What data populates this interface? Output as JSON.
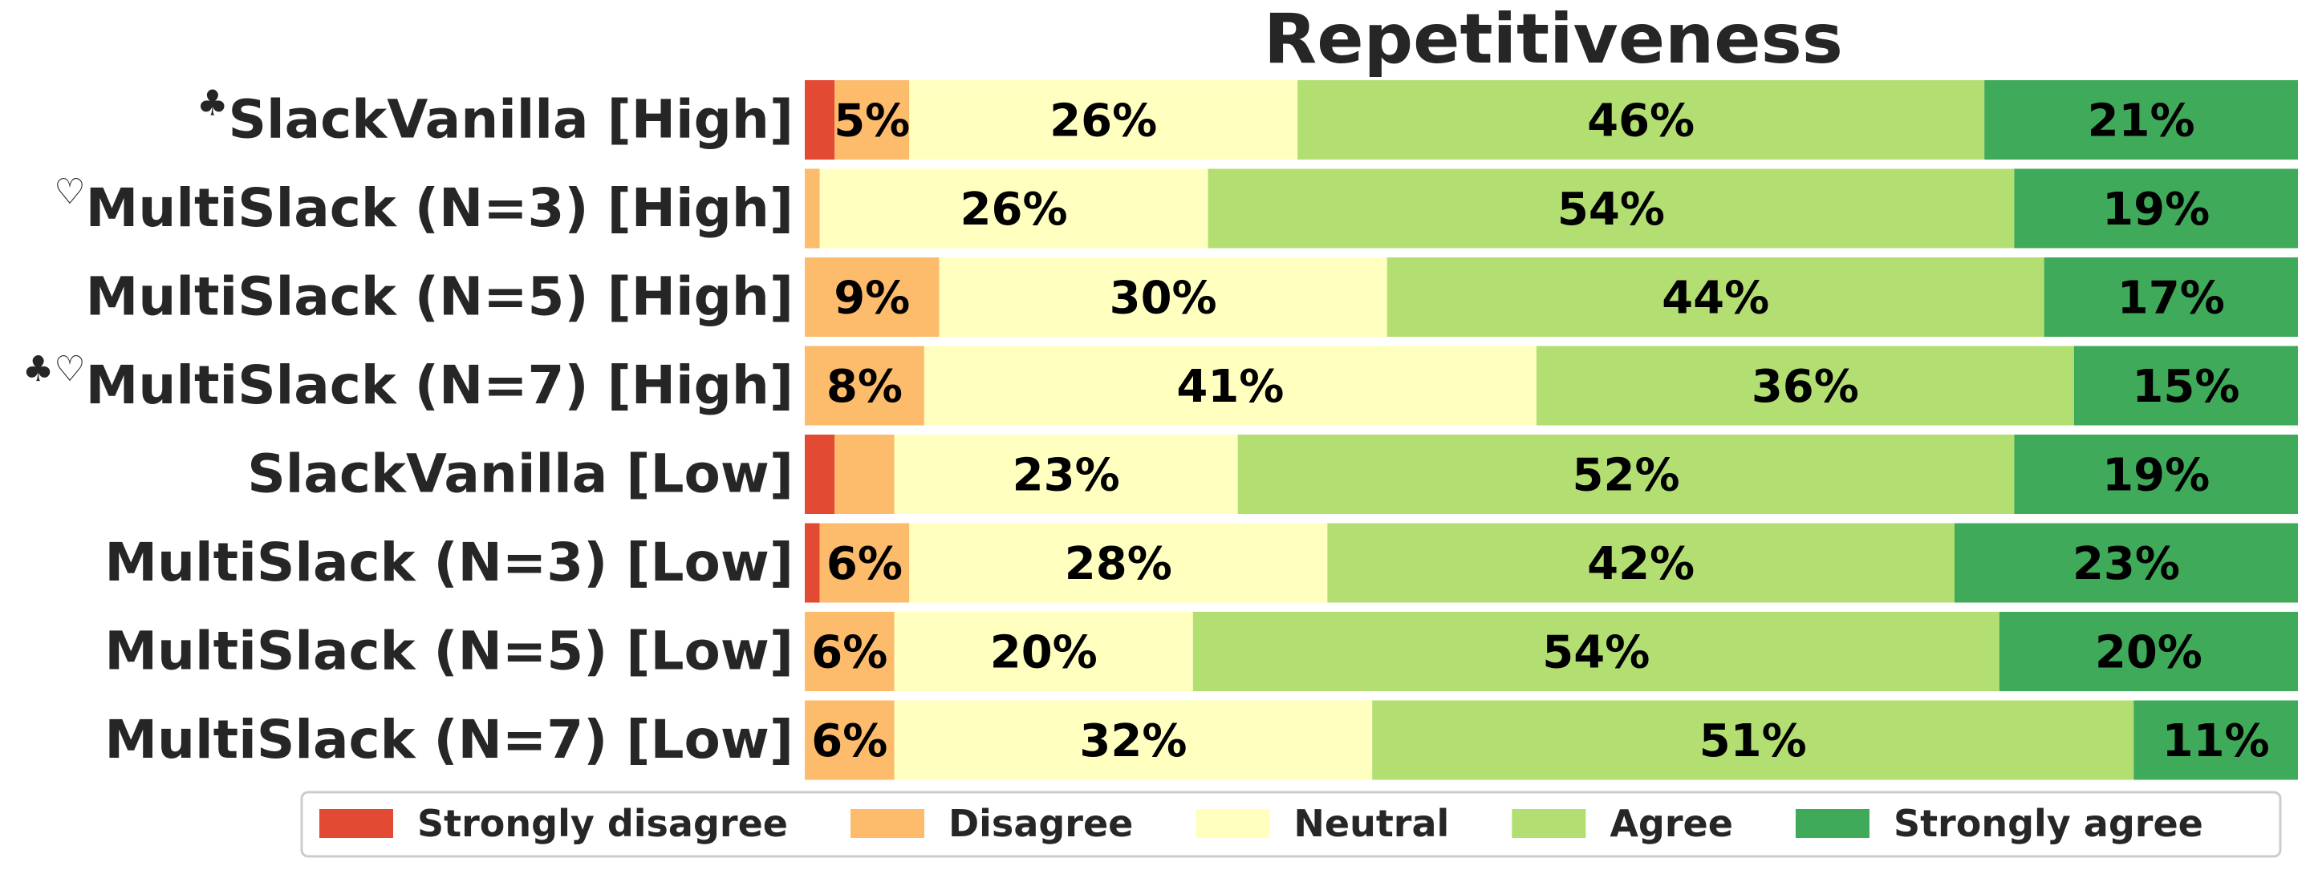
{
  "chart_data": {
    "type": "bar",
    "orientation": "horizontal-stacked-100",
    "title": "Repetitiveness",
    "xlim": [
      0,
      100
    ],
    "grid": false,
    "legend_placement": "bottom",
    "categories": [
      {
        "marker": "♣",
        "label": "SlackVanilla [High]"
      },
      {
        "marker": "♡",
        "label": "MultiSlack (N=3) [High]"
      },
      {
        "marker": "",
        "label": "MultiSlack (N=5) [High]"
      },
      {
        "marker": "♣♡",
        "label": "MultiSlack (N=7) [High]"
      },
      {
        "marker": "",
        "label": "SlackVanilla [Low]"
      },
      {
        "marker": "",
        "label": "MultiSlack (N=3) [Low]"
      },
      {
        "marker": "",
        "label": "MultiSlack (N=5) [Low]"
      },
      {
        "marker": "",
        "label": "MultiSlack (N=7) [Low]"
      }
    ],
    "series": [
      {
        "name": "Strongly disagree",
        "color": "#e34a33",
        "values": [
          2,
          0,
          0,
          0,
          2,
          1,
          0,
          0
        ]
      },
      {
        "name": "Disagree",
        "color": "#fdbb6c",
        "values": [
          5,
          1,
          9,
          8,
          4,
          6,
          6,
          6
        ]
      },
      {
        "name": "Neutral",
        "color": "#ffffbf",
        "values": [
          26,
          26,
          30,
          41,
          23,
          28,
          20,
          32
        ]
      },
      {
        "name": "Agree",
        "color": "#b3df72",
        "values": [
          46,
          54,
          44,
          36,
          52,
          42,
          54,
          51
        ]
      },
      {
        "name": "Strongly agree",
        "color": "#3faa59",
        "values": [
          21,
          19,
          17,
          15,
          19,
          23,
          20,
          11
        ]
      }
    ],
    "data_labels": [
      [
        "",
        "5%",
        "26%",
        "46%",
        "21%"
      ],
      [
        "",
        "",
        "26%",
        "54%",
        "19%"
      ],
      [
        "",
        "9%",
        "30%",
        "44%",
        "17%"
      ],
      [
        "",
        "8%",
        "41%",
        "36%",
        "15%"
      ],
      [
        "",
        "",
        "23%",
        "52%",
        "19%"
      ],
      [
        "",
        "6%",
        "28%",
        "42%",
        "23%"
      ],
      [
        "",
        "6%",
        "20%",
        "54%",
        "20%"
      ],
      [
        "",
        "6%",
        "32%",
        "51%",
        "11%"
      ]
    ]
  }
}
